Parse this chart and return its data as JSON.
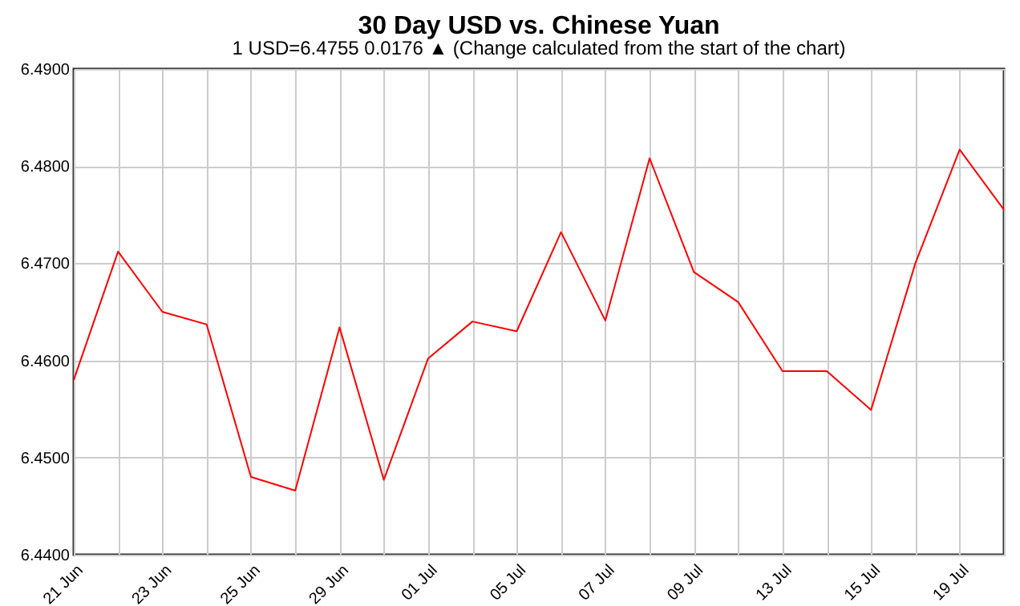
{
  "chart_data": {
    "type": "line",
    "title": "30 Day USD vs. Chinese Yuan",
    "subtitle": "1 USD=6.4755  0.0176 ▲  (Change calculated from the start of the chart)",
    "categories": [
      "21 Jun",
      null,
      "23 Jun",
      null,
      "25 Jun",
      null,
      "29 Jun",
      null,
      "01 Jul",
      null,
      "05 Jul",
      null,
      "07 Jul",
      null,
      "09 Jul",
      null,
      "13 Jul",
      null,
      "15 Jul",
      null,
      "19 Jul",
      null
    ],
    "series": [
      {
        "color": "#ff0000",
        "values": [
          6.458,
          6.4712,
          6.465,
          6.4637,
          6.448,
          6.4466,
          6.4634,
          6.4477,
          6.4602,
          6.464,
          6.463,
          6.4732,
          6.4641,
          6.4808,
          6.4691,
          6.466,
          6.4589,
          6.4589,
          6.4549,
          6.47,
          6.4817,
          6.4755
        ]
      }
    ],
    "ylim": [
      6.44,
      6.49
    ],
    "yticks": [
      {
        "value": 6.44,
        "label": "6.4400"
      },
      {
        "value": 6.45,
        "label": "6.4500"
      },
      {
        "value": 6.46,
        "label": "6.4600"
      },
      {
        "value": 6.47,
        "label": "6.4700"
      },
      {
        "value": 6.48,
        "label": "6.4800"
      },
      {
        "value": 6.49,
        "label": "6.4900"
      }
    ],
    "grid": true,
    "marker": "none",
    "line_style": "solid"
  }
}
